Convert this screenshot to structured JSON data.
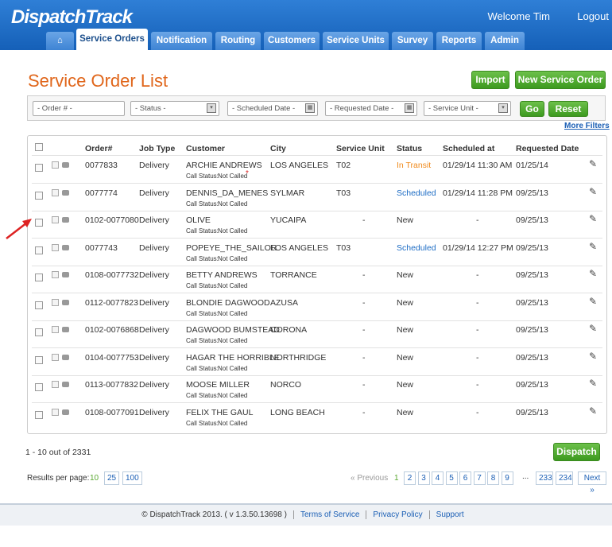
{
  "header": {
    "logo": "DispatchTrack",
    "welcome": "Welcome Tim",
    "logout": "Logout"
  },
  "nav": [
    "Service Orders",
    "Notification",
    "Routing",
    "Customers",
    "Service Units",
    "Survey",
    "Reports",
    "Admin"
  ],
  "page_title": "Service Order List",
  "buttons": {
    "import": "Import",
    "new_order": "New Service Order",
    "go": "Go",
    "reset": "Reset",
    "dispatch": "Dispatch"
  },
  "filters": [
    "- Order # -",
    "- Status -",
    "- Scheduled Date -",
    "- Requested Date -",
    "- Service Unit -"
  ],
  "more_filters": "More Filters",
  "table": {
    "columns": [
      "Order#",
      "Job Type",
      "Customer",
      "City",
      "Service Unit",
      "Status",
      "Scheduled at",
      "Requested Date"
    ],
    "call_status_label": "Call Status:",
    "required_marker": "*",
    "rows": [
      {
        "order": "0077833",
        "job_type": "Delivery",
        "customer": "ARCHIE ANDREWS",
        "call_status": "Not Called",
        "city": "LOS ANGELES",
        "service_unit": "T02",
        "status": "In Transit",
        "scheduled_at": "01/29/14 11:30 AM",
        "requested_date": "01/25/14"
      },
      {
        "order": "0077774",
        "job_type": "Delivery",
        "customer": "DENNIS_DA_MENES",
        "call_status": "Not Called",
        "city": "SYLMAR",
        "service_unit": "T03",
        "status": "Scheduled",
        "scheduled_at": "01/29/14 11:28 PM",
        "requested_date": "09/25/13"
      },
      {
        "order": "0102-0077080",
        "job_type": "Delivery",
        "customer": "OLIVE",
        "call_status": "Not Called",
        "city": "YUCAIPA",
        "service_unit": "-",
        "status": "New",
        "scheduled_at": "-",
        "requested_date": "09/25/13"
      },
      {
        "order": "0077743",
        "job_type": "Delivery",
        "customer": "POPEYE_THE_SAILOR",
        "call_status": "Not Called",
        "city": "LOS ANGELES",
        "service_unit": "T03",
        "status": "Scheduled",
        "scheduled_at": "01/29/14 12:27 PM",
        "requested_date": "09/25/13"
      },
      {
        "order": "0108-0077732",
        "job_type": "Delivery",
        "customer": "BETTY ANDREWS",
        "call_status": "Not Called",
        "city": "TORRANCE",
        "service_unit": "-",
        "status": "New",
        "scheduled_at": "-",
        "requested_date": "09/25/13"
      },
      {
        "order": "0112-0077823",
        "job_type": "Delivery",
        "customer": "BLONDIE DAGWOOD",
        "call_status": "Not Called",
        "city": "AZUSA",
        "service_unit": "-",
        "status": "New",
        "scheduled_at": "-",
        "requested_date": "09/25/13"
      },
      {
        "order": "0102-0076868",
        "job_type": "Delivery",
        "customer": "DAGWOOD BUMSTEAD",
        "call_status": "Not Called",
        "city": "CORONA",
        "service_unit": "-",
        "status": "New",
        "scheduled_at": "-",
        "requested_date": "09/25/13"
      },
      {
        "order": "0104-0077753",
        "job_type": "Delivery",
        "customer": "HAGAR THE HORRIBLE",
        "call_status": "Not Called",
        "city": "NORTHRIDGE",
        "service_unit": "-",
        "status": "New",
        "scheduled_at": "-",
        "requested_date": "09/25/13"
      },
      {
        "order": "0113-0077832",
        "job_type": "Delivery",
        "customer": "MOOSE MILLER",
        "call_status": "Not Called",
        "city": "NORCO",
        "service_unit": "-",
        "status": "New",
        "scheduled_at": "-",
        "requested_date": "09/25/13"
      },
      {
        "order": "0108-0077091",
        "job_type": "Delivery",
        "customer": "FELIX THE GAUL",
        "call_status": "Not Called",
        "city": "LONG BEACH",
        "service_unit": "-",
        "status": "New",
        "scheduled_at": "-",
        "requested_date": "09/25/13"
      }
    ]
  },
  "summary": "1 - 10 out of 2331",
  "per_page": {
    "label": "Results per page:",
    "options": [
      "10",
      "25",
      "100"
    ]
  },
  "pagination": {
    "previous": "« Previous",
    "pages": [
      "1",
      "2",
      "3",
      "4",
      "5",
      "6",
      "7",
      "8",
      "9"
    ],
    "ellipsis": "...",
    "last_pages": [
      "233",
      "234"
    ],
    "next": "Next »"
  },
  "footer": {
    "copyright": "© DispatchTrack 2013. ( v 1.3.50.13698 )",
    "links": [
      "Terms of Service",
      "Privacy Policy",
      "Support"
    ]
  }
}
